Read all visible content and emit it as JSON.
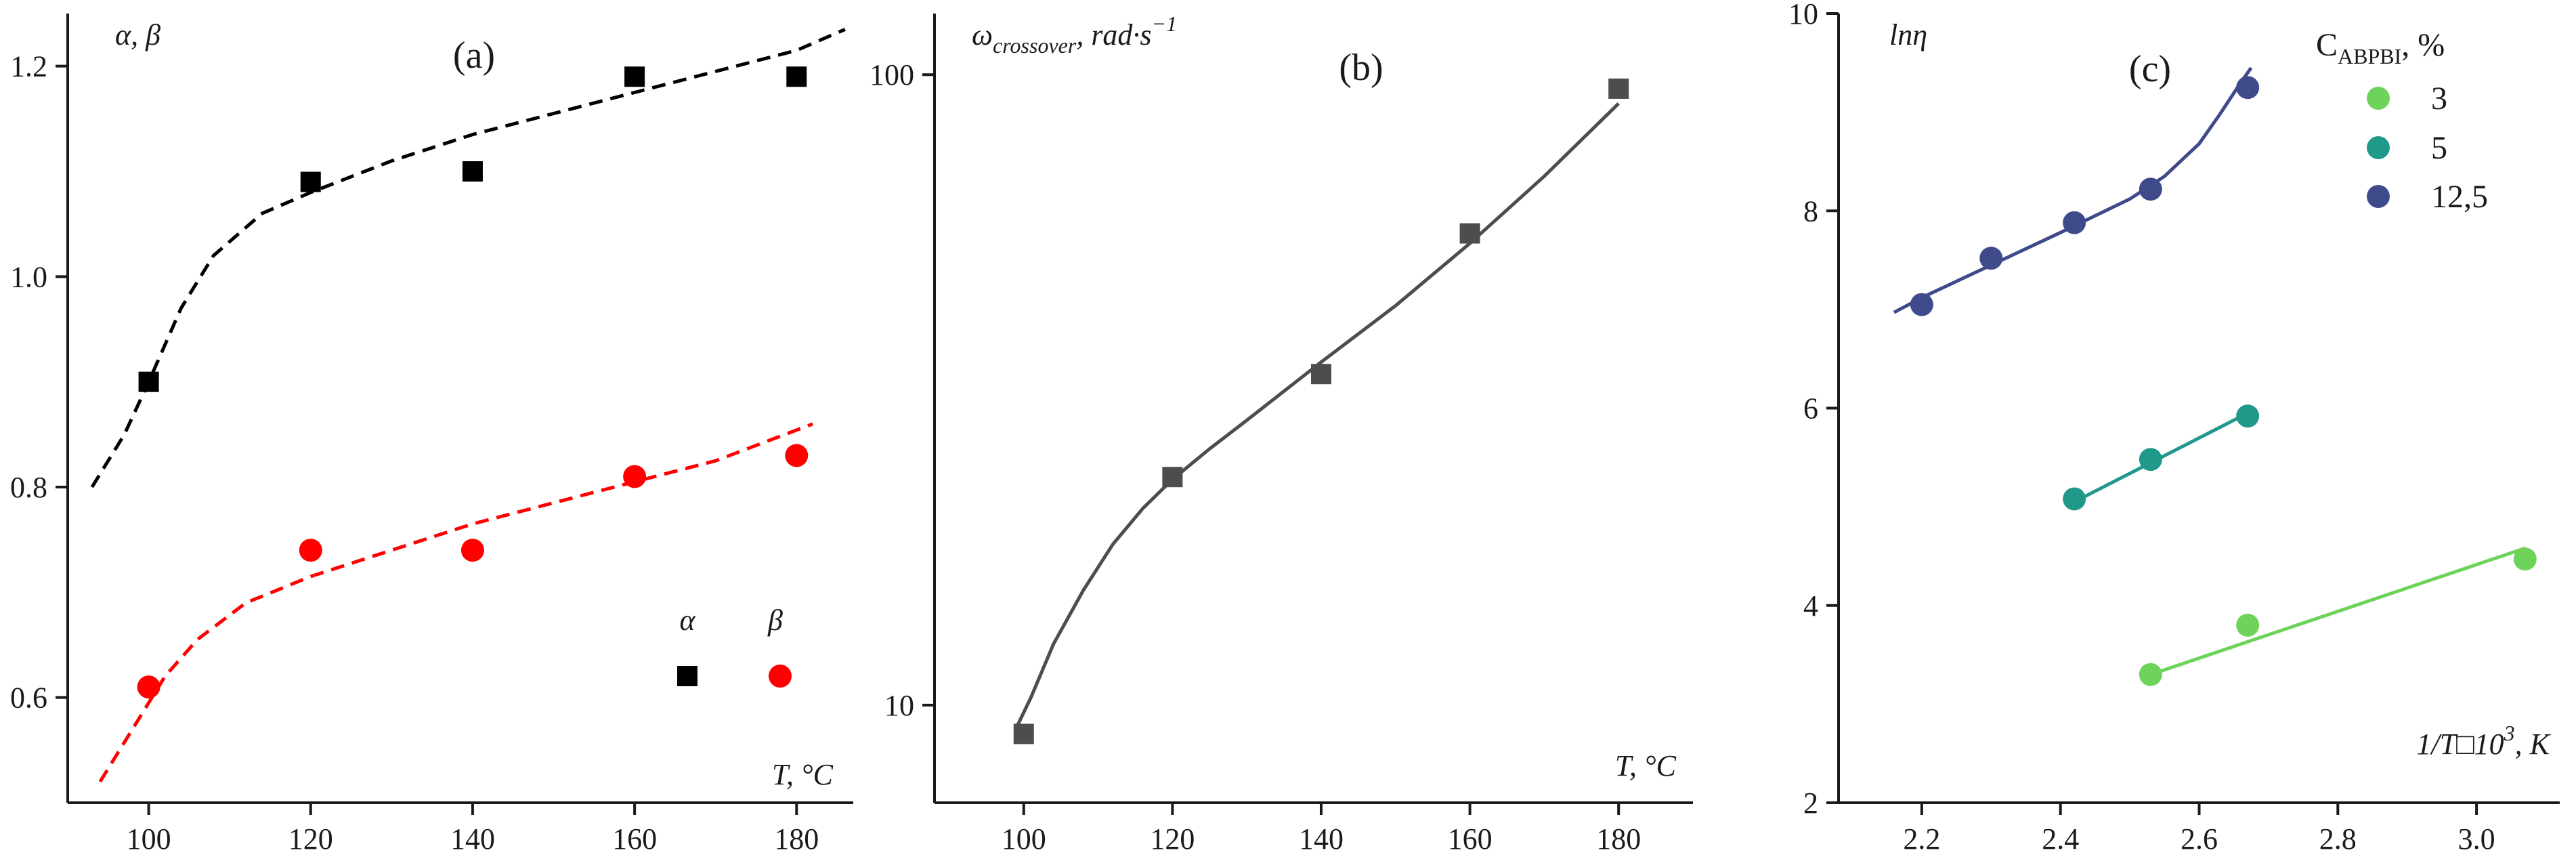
{
  "chart_data": [
    {
      "type": "scatter",
      "panel_label": "(a)",
      "xlabel": "T, °C",
      "ylabel": "α, β",
      "xlim": [
        90,
        187
      ],
      "ylim": [
        0.5,
        1.25
      ],
      "x_ticks": [
        100,
        120,
        140,
        160,
        180
      ],
      "y_ticks": [
        0.6,
        0.8,
        1.0,
        1.2
      ],
      "x_tick_labels": [
        "100",
        "120",
        "140",
        "160",
        "180"
      ],
      "y_tick_labels": [
        "0.6",
        "0.8",
        "1.0",
        "1.2"
      ],
      "legend_position": "bottom-right",
      "series": [
        {
          "name": "α",
          "marker": "square",
          "color": "#000000",
          "x": [
            100,
            120,
            140,
            160,
            180
          ],
          "y": [
            0.9,
            1.09,
            1.1,
            1.19,
            1.19
          ],
          "fit": {
            "style": "dashed",
            "x": [
              93,
              97,
              100,
              104,
              108,
              114,
              120,
              130,
              140,
              150,
              160,
              170,
              180,
              186
            ],
            "y": [
              0.8,
              0.85,
              0.9,
              0.97,
              1.02,
              1.06,
              1.08,
              1.11,
              1.135,
              1.155,
              1.175,
              1.195,
              1.215,
              1.235
            ]
          }
        },
        {
          "name": "β",
          "marker": "circle",
          "color": "#ff0000",
          "x": [
            100,
            120,
            140,
            160,
            180
          ],
          "y": [
            0.61,
            0.74,
            0.74,
            0.81,
            0.83
          ],
          "fit": {
            "style": "dashed",
            "x": [
              94,
              98,
              102,
              106,
              112,
              120,
              130,
              140,
              150,
              160,
              170,
              182
            ],
            "y": [
              0.52,
              0.57,
              0.62,
              0.655,
              0.69,
              0.715,
              0.74,
              0.765,
              0.785,
              0.805,
              0.825,
              0.86
            ]
          }
        }
      ]
    },
    {
      "type": "scatter",
      "panel_label": "(b)",
      "xlabel": "T, °C",
      "ylabel": "ωcrossover, rad·s⁻¹",
      "ylabel_parts": {
        "symbol": "ω",
        "subscript": "crossover",
        "rest": ", rad·s",
        "sup": "−1"
      },
      "xscale": "linear",
      "yscale": "log",
      "xlim": [
        88,
        190
      ],
      "ylim": [
        7,
        125
      ],
      "x_ticks": [
        100,
        120,
        140,
        160,
        180
      ],
      "y_ticks": [
        10,
        100
      ],
      "x_tick_labels": [
        "100",
        "120",
        "140",
        "160",
        "180"
      ],
      "y_tick_labels": [
        "10",
        "100"
      ],
      "series": [
        {
          "marker": "square",
          "color": "#4d4d4d",
          "x": [
            100,
            120,
            140,
            160,
            180
          ],
          "y": [
            9,
            23,
            33.5,
            56,
            95
          ],
          "fit": {
            "style": "solid",
            "x": [
              99,
              101,
              104,
              108,
              112,
              116,
              120,
              125,
              130,
              140,
              150,
              160,
              170,
              180
            ],
            "y": [
              9.2,
              10.3,
              12.5,
              15.2,
              18.0,
              20.5,
              22.8,
              25.5,
              28.3,
              35.0,
              43.0,
              54.0,
              69.0,
              90.0
            ]
          }
        }
      ]
    },
    {
      "type": "scatter",
      "panel_label": "(c)",
      "xlabel": "1/T□10³, K",
      "xlabel_parts": {
        "italic": "1/T",
        "mid": "□10",
        "sup": "3",
        "rest": ", K"
      },
      "ylabel": "lnη",
      "xlim": [
        2.08,
        3.12
      ],
      "ylim": [
        2,
        10
      ],
      "x_ticks": [
        2.2,
        2.4,
        2.6,
        2.8,
        3.0
      ],
      "y_ticks": [
        2,
        4,
        6,
        8,
        10
      ],
      "x_tick_labels": [
        "2.2",
        "2.4",
        "2.6",
        "2.8",
        "3.0"
      ],
      "y_tick_labels": [
        "2",
        "4",
        "6",
        "8",
        "10"
      ],
      "legend_title": "CABPBI, %",
      "legend_title_parts": {
        "base": "C",
        "sub": "ABPBI",
        "rest": ", %"
      },
      "legend_position": "top-right",
      "series": [
        {
          "name": "3",
          "marker": "circle",
          "color": "#6ed35a",
          "x": [
            2.53,
            2.67,
            3.07
          ],
          "y": [
            3.3,
            3.8,
            4.47
          ],
          "fit": {
            "style": "solid",
            "x": [
              2.53,
              3.07
            ],
            "y": [
              3.3,
              4.58
            ]
          }
        },
        {
          "name": "5",
          "marker": "circle",
          "color": "#21998a",
          "x": [
            2.42,
            2.53,
            2.67
          ],
          "y": [
            5.08,
            5.48,
            5.92
          ],
          "fit": {
            "style": "solid",
            "x": [
              2.42,
              2.67
            ],
            "y": [
              5.05,
              5.95
            ]
          }
        },
        {
          "name": "12,5",
          "marker": "circle",
          "color": "#3f4a8a",
          "x": [
            2.2,
            2.3,
            2.42,
            2.53,
            2.67
          ],
          "y": [
            7.05,
            7.52,
            7.88,
            8.22,
            9.25
          ],
          "fit": {
            "style": "solid",
            "x": [
              2.16,
              2.2,
              2.3,
              2.4,
              2.5,
              2.55,
              2.6,
              2.63,
              2.66,
              2.675
            ],
            "y": [
              6.97,
              7.12,
              7.45,
              7.78,
              8.12,
              8.35,
              8.68,
              8.98,
              9.3,
              9.45
            ]
          }
        }
      ]
    }
  ]
}
